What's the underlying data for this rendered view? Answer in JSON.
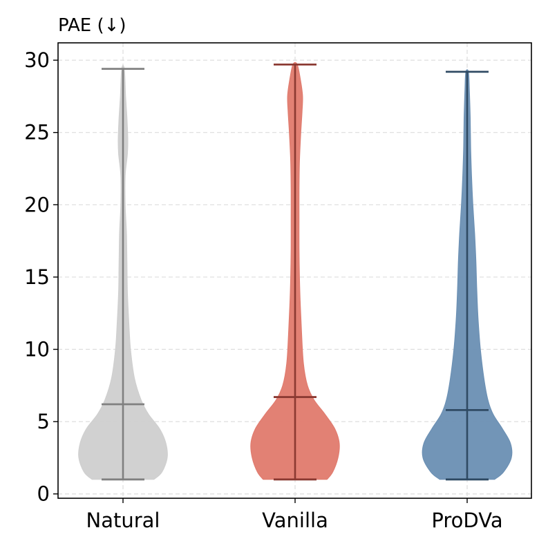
{
  "chart_data": {
    "type": "violin",
    "title": "PAE (↓)",
    "xlabel": "",
    "ylabel": "",
    "categories": [
      "Natural",
      "Vanilla",
      "ProDVa"
    ],
    "ylim": [
      -0.3,
      31.2
    ],
    "yticks": [
      0,
      5,
      10,
      15,
      20,
      25,
      30
    ],
    "grid": true,
    "legend": "none",
    "series": [
      {
        "category": "Natural",
        "fill": "#cfcfcf",
        "line": "#808080",
        "min": 1.0,
        "median": 6.2,
        "max": 29.4,
        "profile_y": [
          1.0,
          1.5,
          2.5,
          3.5,
          4.5,
          5.5,
          6.5,
          8,
          10,
          12,
          14,
          16,
          18,
          20,
          22,
          23.5,
          24.5,
          26,
          27.5,
          29.4
        ],
        "profile_width": [
          0.7,
          0.88,
          1.0,
          0.97,
          0.83,
          0.58,
          0.41,
          0.26,
          0.17,
          0.13,
          0.1,
          0.09,
          0.08,
          0.05,
          0.05,
          0.1,
          0.11,
          0.09,
          0.06,
          0.03
        ]
      },
      {
        "category": "Vanilla",
        "fill": "#e07a6d",
        "line": "#8b3a32",
        "min": 1.0,
        "median": 6.7,
        "max": 29.7,
        "profile_y": [
          1.0,
          1.5,
          2.5,
          3.5,
          4.5,
          5.5,
          6.5,
          7.5,
          9,
          11,
          13,
          15,
          17,
          19,
          21,
          23,
          25,
          26.5,
          27.5,
          28.5,
          29.7
        ],
        "profile_width": [
          0.72,
          0.85,
          0.97,
          1.0,
          0.9,
          0.68,
          0.43,
          0.28,
          0.19,
          0.15,
          0.12,
          0.1,
          0.09,
          0.09,
          0.09,
          0.1,
          0.13,
          0.16,
          0.17,
          0.13,
          0.05
        ]
      },
      {
        "category": "ProDVa",
        "fill": "#6a8fb3",
        "line": "#2f4a63",
        "min": 1.0,
        "median": 5.8,
        "max": 29.2,
        "profile_y": [
          1.0,
          1.5,
          2.5,
          3.5,
          4.5,
          5.5,
          6.5,
          8,
          10,
          12,
          14,
          16,
          18,
          20,
          22,
          24,
          26,
          28,
          29.2
        ],
        "profile_width": [
          0.62,
          0.82,
          1.0,
          0.98,
          0.8,
          0.59,
          0.47,
          0.38,
          0.3,
          0.25,
          0.22,
          0.2,
          0.17,
          0.13,
          0.1,
          0.08,
          0.07,
          0.05,
          0.03
        ]
      }
    ]
  }
}
